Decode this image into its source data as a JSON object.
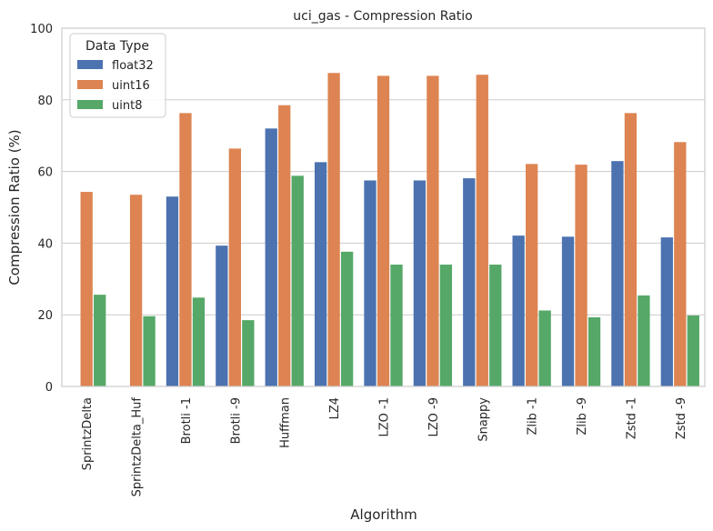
{
  "chart_data": {
    "type": "bar",
    "title": "uci_gas - Compression Ratio",
    "xlabel": "Algorithm",
    "ylabel": "Compression Ratio (%)",
    "ylim": [
      0,
      100
    ],
    "yticks": [
      0,
      20,
      40,
      60,
      80,
      100
    ],
    "grid": true,
    "legend": {
      "title": "Data Type",
      "placement": "top-left"
    },
    "categories": [
      "SprintzDelta",
      "SprintzDelta_Huf",
      "Brotli -1",
      "Brotli -9",
      "Huffman",
      "LZ4",
      "LZO -1",
      "LZO -9",
      "Snappy",
      "Zlib -1",
      "Zlib -9",
      "Zstd -1",
      "Zstd -9"
    ],
    "series": [
      {
        "name": "float32",
        "color": "#4c72b0",
        "values": [
          null,
          null,
          53.0,
          39.3,
          72.0,
          62.6,
          57.5,
          57.5,
          58.1,
          42.1,
          41.8,
          62.9,
          41.6
        ]
      },
      {
        "name": "uint16",
        "color": "#dd8452",
        "values": [
          54.3,
          53.5,
          76.3,
          66.4,
          78.5,
          87.5,
          86.7,
          86.7,
          87.0,
          62.1,
          61.9,
          76.3,
          68.2
        ]
      },
      {
        "name": "uint8",
        "color": "#55a868",
        "values": [
          25.6,
          19.6,
          24.8,
          18.5,
          58.8,
          37.6,
          34.0,
          34.0,
          34.0,
          21.2,
          19.3,
          25.4,
          19.8
        ]
      }
    ]
  }
}
